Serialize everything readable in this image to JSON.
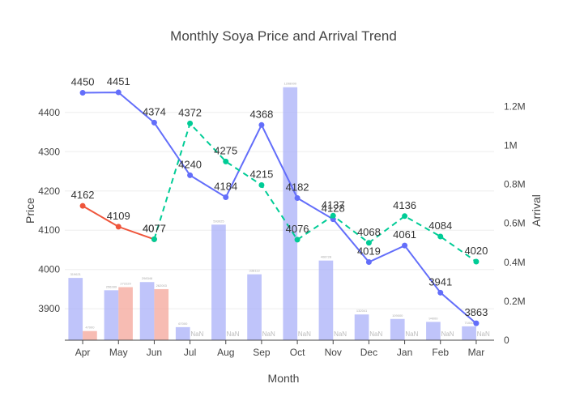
{
  "chart_data": {
    "type": "bar+line",
    "title": "Monthly Soya Price and Arrival Trend",
    "xlabel": "Month",
    "ylabel": "Price",
    "y2label": "Arrival",
    "categories": [
      "Apr",
      "May",
      "Jun",
      "Jul",
      "Aug",
      "Sep",
      "Oct",
      "Nov",
      "Dec",
      "Jan",
      "Feb",
      "Mar"
    ],
    "ylim": [
      3820,
      4480
    ],
    "y2lim": [
      0,
      1330000
    ],
    "yticks": [
      3900,
      4000,
      4100,
      4200,
      4300,
      4400
    ],
    "y2ticks": [
      {
        "value": 0,
        "label": "0"
      },
      {
        "value": 200000,
        "label": "0.2M"
      },
      {
        "value": 400000,
        "label": "0.4M"
      },
      {
        "value": 600000,
        "label": "0.6M"
      },
      {
        "value": 800000,
        "label": "0.8M"
      },
      {
        "value": 1000000,
        "label": "1M"
      },
      {
        "value": 1200000,
        "label": "1.2M"
      }
    ],
    "colors": {
      "price_a": "#636efa",
      "price_b": "#ef553b",
      "price_c": "#00cc96",
      "arrival_a": "#aab0f8",
      "arrival_b": "#f4a69a"
    },
    "bar_series": [
      {
        "values": [
          319621,
          256289,
          298346,
          67000,
          593025,
          338113,
          1298000,
          408728,
          132041,
          109000,
          94000,
          71000
        ],
        "labels": [
          "319621",
          "256289",
          "298346",
          "67000",
          "593025",
          "338113",
          "1298000",
          "408728",
          "132041",
          "109000",
          "94000",
          "71000"
        ]
      },
      {
        "values": [
          47000,
          272229,
          262003,
          null,
          null,
          null,
          null,
          null,
          null,
          null,
          null,
          null
        ],
        "labels": [
          "47000",
          "272229",
          "262003",
          "NaN",
          "NaN",
          "NaN",
          "NaN",
          "NaN",
          "NaN",
          "NaN",
          "NaN",
          "NaN"
        ]
      }
    ],
    "line_series": [
      {
        "style": "solid",
        "values": [
          4450,
          4451,
          4374,
          4240,
          4184,
          4368,
          4182,
          4128,
          4019,
          4061,
          3941,
          3863
        ]
      },
      {
        "style": "solid",
        "values": [
          4162,
          4109,
          4077,
          null,
          null,
          null,
          null,
          null,
          null,
          null,
          null,
          null
        ]
      },
      {
        "style": "dashed",
        "values": [
          null,
          null,
          4077,
          4372,
          4275,
          4215,
          4076,
          4137,
          4068,
          4136,
          4084,
          4020
        ]
      }
    ],
    "grid": true,
    "legend": "none"
  }
}
